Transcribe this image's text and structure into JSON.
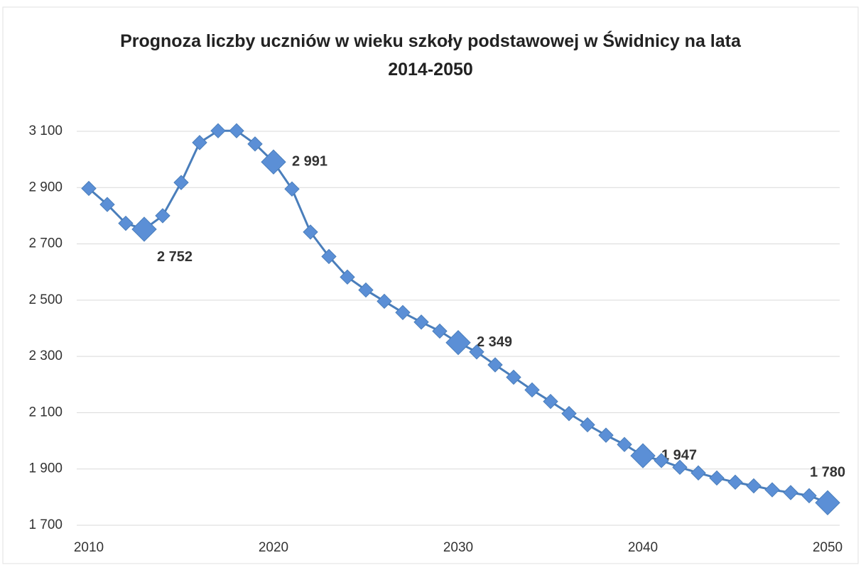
{
  "chart_data": {
    "type": "line",
    "title": "Prognoza liczby uczniów w wieku szkoły podstawowej w Świdnicy na lata 2014-2050",
    "x": [
      2010,
      2011,
      2012,
      2013,
      2014,
      2015,
      2016,
      2017,
      2018,
      2019,
      2020,
      2021,
      2022,
      2023,
      2024,
      2025,
      2026,
      2027,
      2028,
      2029,
      2030,
      2031,
      2032,
      2033,
      2034,
      2035,
      2036,
      2037,
      2038,
      2039,
      2040,
      2041,
      2042,
      2043,
      2044,
      2045,
      2046,
      2047,
      2048,
      2049,
      2050
    ],
    "series": [
      {
        "name": null,
        "color": "#4a7ebb",
        "values": [
          2897,
          2840,
          2773,
          2752,
          2800,
          2918,
          3060,
          3102,
          3102,
          3055,
          2991,
          2895,
          2742,
          2655,
          2582,
          2536,
          2496,
          2456,
          2422,
          2390,
          2349,
          2316,
          2270,
          2226,
          2181,
          2140,
          2097,
          2057,
          2020,
          1987,
          1947,
          1930,
          1906,
          1886,
          1868,
          1853,
          1840,
          1826,
          1816,
          1805,
          1780
        ],
        "value_labels": [
          null,
          null,
          null,
          "2 752",
          null,
          null,
          null,
          null,
          null,
          null,
          "2 991",
          null,
          null,
          null,
          null,
          null,
          null,
          null,
          null,
          null,
          "2 349",
          null,
          null,
          null,
          null,
          null,
          null,
          null,
          null,
          null,
          "1 947",
          null,
          null,
          null,
          null,
          null,
          null,
          null,
          null,
          null,
          "1 780"
        ]
      }
    ],
    "xlim": [
      2010,
      2050
    ],
    "xticks": [
      2010,
      2020,
      2030,
      2040,
      2050
    ],
    "ylim": [
      1700,
      3100
    ],
    "yticks": [
      {
        "value": 1700,
        "label": "1 700"
      },
      {
        "value": 1900,
        "label": "1 900"
      },
      {
        "value": 2100,
        "label": "2 100"
      },
      {
        "value": 2300,
        "label": "2 300"
      },
      {
        "value": 2500,
        "label": "2 500"
      },
      {
        "value": 2700,
        "label": "2 700"
      },
      {
        "value": 2900,
        "label": "2 900"
      },
      {
        "value": 3100,
        "label": "3 100"
      }
    ],
    "grid": true
  }
}
